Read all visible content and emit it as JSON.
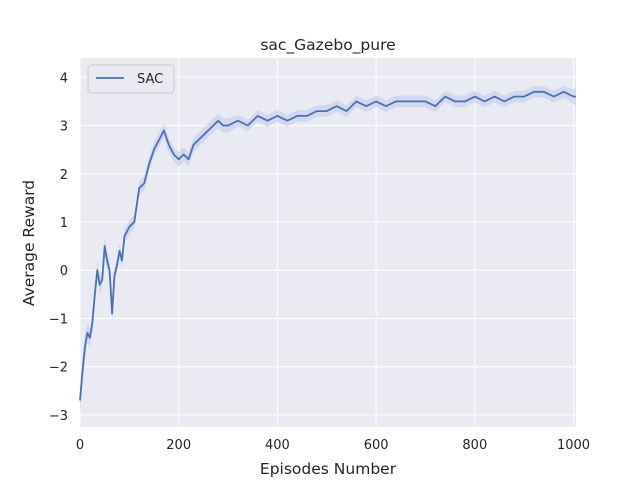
{
  "chart_data": {
    "type": "line",
    "title": "sac_Gazebo_pure",
    "xlabel": "Episodes Number",
    "ylabel": "Average Reward",
    "xlim": [
      0,
      1005
    ],
    "ylim": [
      -3.25,
      4.4
    ],
    "xticks": [
      0,
      200,
      400,
      600,
      800,
      1000
    ],
    "xtick_labels": [
      "0",
      "200",
      "400",
      "600",
      "800",
      "1000"
    ],
    "yticks": [
      -3,
      -2,
      -1,
      0,
      1,
      2,
      3,
      4
    ],
    "ytick_labels": [
      "−3",
      "−2",
      "−1",
      "0",
      "1",
      "2",
      "3",
      "4"
    ],
    "grid": true,
    "legend_position": "top-left",
    "colors": {
      "line": "#4c72b0",
      "band": "#c9d3ec",
      "background": "#eaeaf2",
      "grid": "#ffffff"
    },
    "series": [
      {
        "name": "SAC",
        "x": [
          0,
          5,
          10,
          15,
          20,
          25,
          30,
          35,
          40,
          45,
          50,
          55,
          60,
          65,
          70,
          75,
          80,
          85,
          90,
          100,
          110,
          120,
          130,
          140,
          150,
          160,
          170,
          180,
          190,
          200,
          210,
          220,
          230,
          240,
          250,
          260,
          270,
          280,
          290,
          300,
          320,
          340,
          360,
          380,
          400,
          420,
          440,
          460,
          480,
          500,
          520,
          540,
          560,
          580,
          600,
          620,
          640,
          660,
          680,
          700,
          720,
          740,
          760,
          780,
          800,
          820,
          840,
          860,
          880,
          900,
          920,
          940,
          960,
          980,
          1000,
          1005
        ],
        "y": [
          -2.7,
          -2.1,
          -1.6,
          -1.3,
          -1.4,
          -1.1,
          -0.5,
          0.0,
          -0.3,
          -0.2,
          0.5,
          0.2,
          0.0,
          -0.9,
          -0.1,
          0.1,
          0.4,
          0.2,
          0.7,
          0.9,
          1.0,
          1.7,
          1.8,
          2.2,
          2.5,
          2.7,
          2.9,
          2.6,
          2.4,
          2.3,
          2.4,
          2.3,
          2.6,
          2.7,
          2.8,
          2.9,
          3.0,
          3.1,
          3.0,
          3.0,
          3.1,
          3.0,
          3.2,
          3.1,
          3.2,
          3.1,
          3.2,
          3.2,
          3.3,
          3.3,
          3.4,
          3.3,
          3.5,
          3.4,
          3.5,
          3.4,
          3.5,
          3.5,
          3.5,
          3.5,
          3.4,
          3.6,
          3.5,
          3.5,
          3.6,
          3.5,
          3.6,
          3.5,
          3.6,
          3.6,
          3.7,
          3.7,
          3.6,
          3.7,
          3.6,
          3.6
        ],
        "band": [
          0.25,
          0.25,
          0.25,
          0.2,
          0.2,
          0.2,
          0.2,
          0.2,
          0.2,
          0.2,
          0.2,
          0.2,
          0.2,
          0.2,
          0.15,
          0.15,
          0.15,
          0.15,
          0.15,
          0.15,
          0.15,
          0.15,
          0.15,
          0.15,
          0.15,
          0.15,
          0.15,
          0.15,
          0.15,
          0.15,
          0.15,
          0.15,
          0.15,
          0.15,
          0.15,
          0.15,
          0.15,
          0.15,
          0.15,
          0.15,
          0.12,
          0.12,
          0.12,
          0.12,
          0.12,
          0.12,
          0.12,
          0.12,
          0.12,
          0.12,
          0.12,
          0.12,
          0.12,
          0.12,
          0.12,
          0.12,
          0.12,
          0.12,
          0.12,
          0.12,
          0.12,
          0.12,
          0.12,
          0.12,
          0.12,
          0.12,
          0.12,
          0.12,
          0.12,
          0.12,
          0.12,
          0.12,
          0.12,
          0.12,
          0.15,
          0.2
        ]
      }
    ]
  }
}
